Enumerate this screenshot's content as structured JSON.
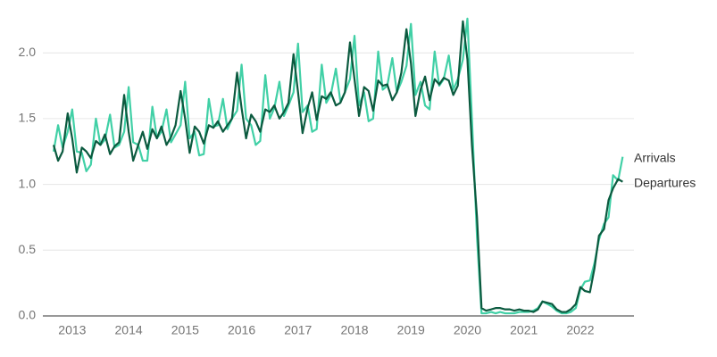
{
  "chart_data": {
    "type": "line",
    "x": [
      2012.67,
      2012.75,
      2012.83,
      2012.92,
      2013.0,
      2013.08,
      2013.17,
      2013.25,
      2013.33,
      2013.42,
      2013.5,
      2013.58,
      2013.67,
      2013.75,
      2013.83,
      2013.92,
      2014.0,
      2014.08,
      2014.17,
      2014.25,
      2014.33,
      2014.42,
      2014.5,
      2014.58,
      2014.67,
      2014.75,
      2014.83,
      2014.92,
      2015.0,
      2015.08,
      2015.17,
      2015.25,
      2015.33,
      2015.42,
      2015.5,
      2015.58,
      2015.67,
      2015.75,
      2015.83,
      2015.92,
      2016.0,
      2016.08,
      2016.17,
      2016.25,
      2016.33,
      2016.42,
      2016.5,
      2016.58,
      2016.67,
      2016.75,
      2016.83,
      2016.92,
      2017.0,
      2017.08,
      2017.17,
      2017.25,
      2017.33,
      2017.42,
      2017.5,
      2017.58,
      2017.67,
      2017.75,
      2017.83,
      2017.92,
      2018.0,
      2018.08,
      2018.17,
      2018.25,
      2018.33,
      2018.42,
      2018.5,
      2018.58,
      2018.67,
      2018.75,
      2018.83,
      2018.92,
      2019.0,
      2019.08,
      2019.17,
      2019.25,
      2019.33,
      2019.42,
      2019.5,
      2019.58,
      2019.67,
      2019.75,
      2019.83,
      2019.92,
      2020.0,
      2020.08,
      2020.17,
      2020.25,
      2020.33,
      2020.42,
      2020.5,
      2020.58,
      2020.67,
      2020.75,
      2020.83,
      2020.92,
      2021.0,
      2021.08,
      2021.17,
      2021.25,
      2021.33,
      2021.42,
      2021.5,
      2021.58,
      2021.67,
      2021.75,
      2021.83,
      2021.92,
      2022.0,
      2022.08,
      2022.17,
      2022.25,
      2022.33,
      2022.42,
      2022.5,
      2022.58,
      2022.67,
      2022.75
    ],
    "series": [
      {
        "name": "Arrivals",
        "color": "#41d0a6",
        "values": [
          1.25,
          1.45,
          1.28,
          1.4,
          1.57,
          1.25,
          1.24,
          1.1,
          1.15,
          1.5,
          1.3,
          1.34,
          1.53,
          1.28,
          1.3,
          1.4,
          1.74,
          1.32,
          1.3,
          1.18,
          1.18,
          1.59,
          1.35,
          1.4,
          1.57,
          1.32,
          1.38,
          1.45,
          1.78,
          1.35,
          1.4,
          1.22,
          1.23,
          1.65,
          1.44,
          1.45,
          1.65,
          1.42,
          1.5,
          1.56,
          1.91,
          1.5,
          1.45,
          1.3,
          1.33,
          1.83,
          1.5,
          1.58,
          1.78,
          1.52,
          1.6,
          1.7,
          2.07,
          1.55,
          1.6,
          1.4,
          1.42,
          1.91,
          1.62,
          1.68,
          1.88,
          1.63,
          1.7,
          1.8,
          2.13,
          1.6,
          1.7,
          1.48,
          1.5,
          2.01,
          1.72,
          1.75,
          1.96,
          1.7,
          1.78,
          1.9,
          2.22,
          1.68,
          1.78,
          1.6,
          1.57,
          2.01,
          1.75,
          1.8,
          1.98,
          1.72,
          1.8,
          1.95,
          2.26,
          1.5,
          0.6,
          0.02,
          0.02,
          0.03,
          0.02,
          0.03,
          0.02,
          0.02,
          0.02,
          0.03,
          0.03,
          0.03,
          0.04,
          0.06,
          0.11,
          0.09,
          0.07,
          0.04,
          0.02,
          0.02,
          0.03,
          0.06,
          0.2,
          0.26,
          0.27,
          0.4,
          0.58,
          0.7,
          0.75,
          1.07,
          1.03,
          1.21
        ]
      },
      {
        "name": "Departures",
        "color": "#0b5a3f",
        "values": [
          1.3,
          1.18,
          1.25,
          1.54,
          1.35,
          1.09,
          1.28,
          1.25,
          1.2,
          1.33,
          1.3,
          1.38,
          1.23,
          1.29,
          1.32,
          1.68,
          1.4,
          1.18,
          1.3,
          1.4,
          1.27,
          1.42,
          1.35,
          1.44,
          1.3,
          1.36,
          1.45,
          1.71,
          1.5,
          1.24,
          1.44,
          1.4,
          1.31,
          1.45,
          1.43,
          1.48,
          1.4,
          1.45,
          1.5,
          1.85,
          1.58,
          1.35,
          1.53,
          1.48,
          1.4,
          1.57,
          1.55,
          1.6,
          1.5,
          1.55,
          1.62,
          1.99,
          1.7,
          1.39,
          1.58,
          1.7,
          1.49,
          1.67,
          1.65,
          1.7,
          1.6,
          1.62,
          1.7,
          2.08,
          1.8,
          1.52,
          1.74,
          1.71,
          1.56,
          1.79,
          1.75,
          1.76,
          1.64,
          1.7,
          1.85,
          2.18,
          1.92,
          1.52,
          1.72,
          1.82,
          1.64,
          1.8,
          1.76,
          1.81,
          1.79,
          1.68,
          1.75,
          2.24,
          1.95,
          1.3,
          0.75,
          0.06,
          0.04,
          0.05,
          0.06,
          0.06,
          0.05,
          0.05,
          0.04,
          0.05,
          0.04,
          0.04,
          0.03,
          0.05,
          0.11,
          0.1,
          0.09,
          0.05,
          0.03,
          0.03,
          0.05,
          0.09,
          0.22,
          0.19,
          0.18,
          0.36,
          0.61,
          0.66,
          0.88,
          0.97,
          1.04,
          1.02
        ]
      }
    ],
    "xlim": [
      2012.48,
      2022.95
    ],
    "xticks": [
      2013,
      2014,
      2015,
      2016,
      2017,
      2018,
      2019,
      2020,
      2021,
      2022
    ],
    "ylim": [
      0,
      2.3
    ],
    "yticks": [
      {
        "value": 0,
        "label": "0.0"
      },
      {
        "value": 0.5,
        "label": "0.5"
      },
      {
        "value": 1,
        "label": "1.0"
      },
      {
        "value": 1.5,
        "label": "1.5"
      },
      {
        "value": 2,
        "label": "2.0"
      }
    ],
    "grid": true
  }
}
